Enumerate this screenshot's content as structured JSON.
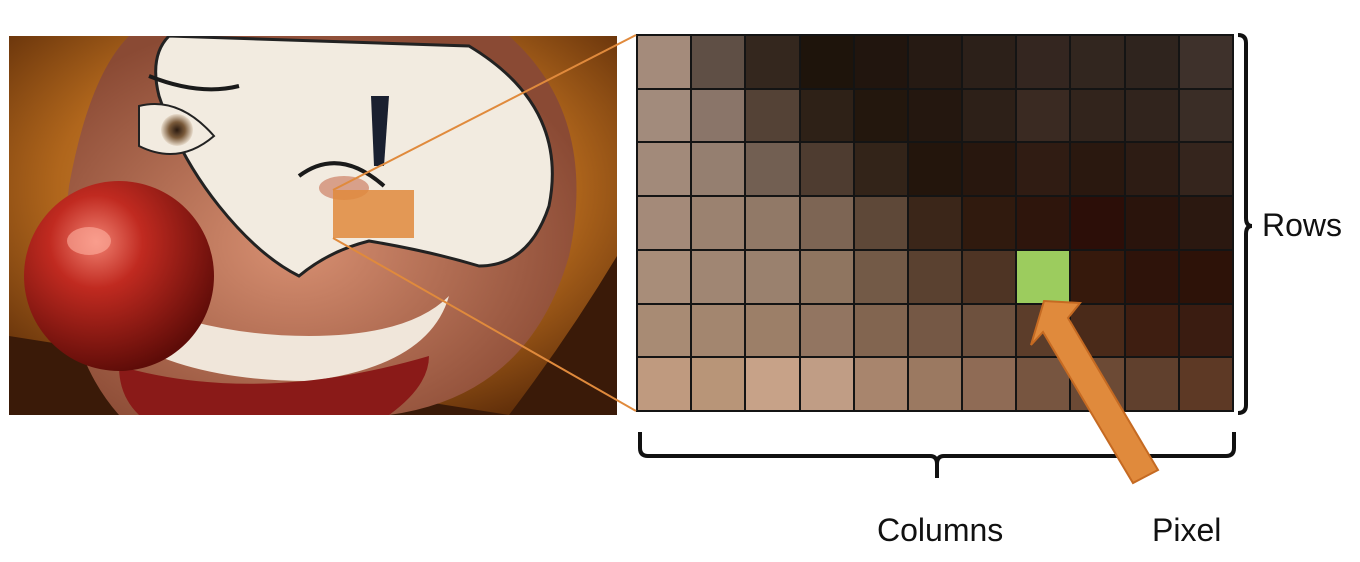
{
  "labels": {
    "rows": "Rows",
    "columns": "Columns",
    "pixel": "Pixel"
  },
  "photo": {
    "subject": "clown-face-closeup"
  },
  "colors": {
    "highlight": "#e08a3c",
    "selected_pixel": "#9ccc5e",
    "grid_line": "#141414"
  },
  "pixel_grid": {
    "rows": 7,
    "columns": 11,
    "selected": {
      "row": 5,
      "column": 8
    },
    "cells": [
      [
        "#a48b7b",
        "#5f4f45",
        "#34271e",
        "#1e140b",
        "#21150e",
        "#261a13",
        "#2c2019",
        "#342620",
        "#32261f",
        "#2f241e",
        "#3e312b"
      ],
      [
        "#a28b7c",
        "#8a7569",
        "#544236",
        "#2e2117",
        "#23170d",
        "#24170f",
        "#2d2018",
        "#3a2a22",
        "#32241c",
        "#31241d",
        "#3a2d26"
      ],
      [
        "#a28a7a",
        "#957f70",
        "#725f52",
        "#4e3c30",
        "#332419",
        "#23150c",
        "#28170e",
        "#301c13",
        "#2a180f",
        "#2d1c14",
        "#35251d"
      ],
      [
        "#a48a79",
        "#9b8270",
        "#917967",
        "#7d6554",
        "#5e4838",
        "#3b2619",
        "#301a0e",
        "#2e150c",
        "#2c0e08",
        "#2a140c",
        "#2b1810"
      ],
      [
        "#a88d79",
        "#a08673",
        "#9a816e",
        "#8f7560",
        "#735a47",
        "#5a4130",
        "#4e3424",
        "#9ccc5e",
        "#36190c",
        "#2e130a",
        "#2d1208"
      ],
      [
        "#a88b74",
        "#a3866f",
        "#9c7f68",
        "#927561",
        "#826550",
        "#755845",
        "#6e513e",
        "#5c3d2a",
        "#4a2a19",
        "#3e1e11",
        "#3a1c11"
      ],
      [
        "#bf9a7f",
        "#b89578",
        "#c7a288",
        "#c09d85",
        "#a8856d",
        "#9b7961",
        "#8f6b55",
        "#775540",
        "#6c4a35",
        "#60402d",
        "#5d3925"
      ]
    ]
  }
}
